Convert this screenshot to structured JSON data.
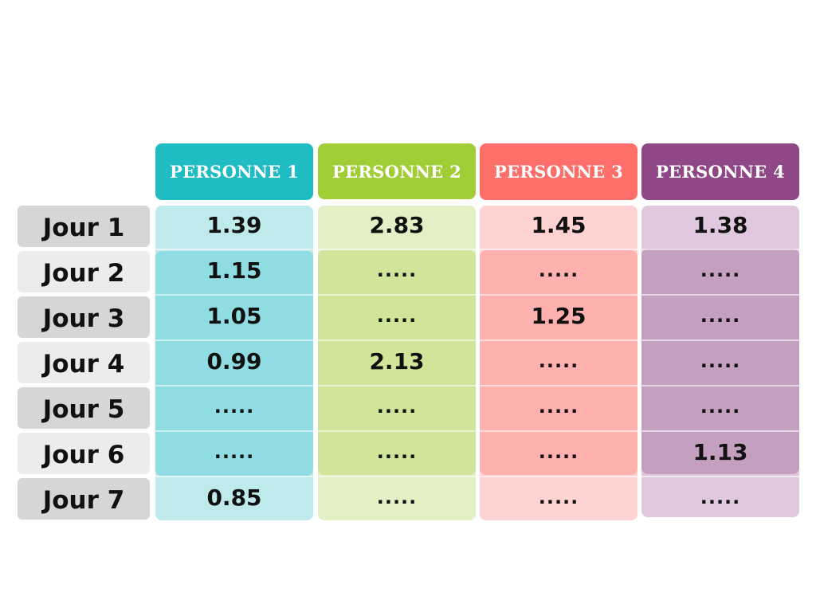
{
  "headers": [
    "PERSONNE 1",
    "PERSONNE 2",
    "PERSONNE 3",
    "PERSONNE 4"
  ],
  "header_colors": [
    "#1fbcc4",
    "#a1cd37",
    "#ff6f6a",
    "#8f4785"
  ],
  "rows": [
    "Jour 1",
    "Jour 2",
    "Jour 3",
    "Jour 4",
    "Jour 5",
    "Jour 6",
    "Jour 7"
  ],
  "cells": [
    [
      "1.39",
      "2.83",
      "1.45",
      "1.38"
    ],
    [
      "1.15",
      ".....",
      ".....",
      "....."
    ],
    [
      "1.05",
      ".....",
      "1.25",
      "....."
    ],
    [
      "0.99",
      "2.13",
      ".....",
      "....."
    ],
    [
      ".....",
      ".....",
      ".....",
      "....."
    ],
    [
      ".....",
      ".....",
      ".....",
      "1.13"
    ],
    [
      "0.85",
      ".....",
      ".....",
      "....."
    ]
  ]
}
